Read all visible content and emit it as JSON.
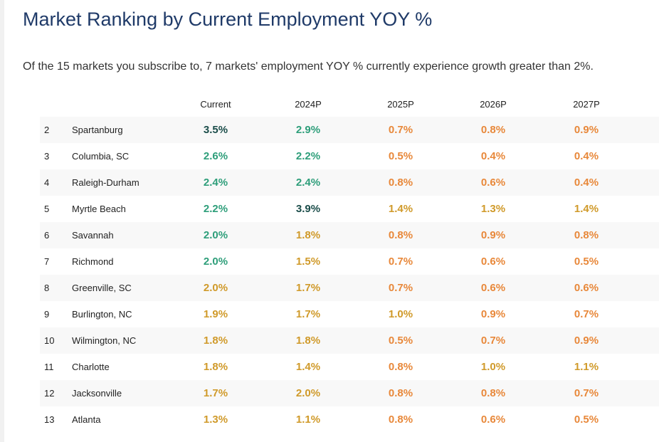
{
  "title": "Market Ranking by Current Employment YOY %",
  "summary": "Of the 15 markets you subscribe to, 7 markets' employment YOY % currently experience growth greater than 2%.",
  "columns": [
    "Current",
    "2024P",
    "2025P",
    "2026P",
    "2027P"
  ],
  "colors": {
    "dark": "#1b4d4a",
    "green": "#2e9e7a",
    "yellow": "#d09a2a",
    "orange": "#e8883a"
  },
  "rows": [
    {
      "rank": "2",
      "market": "Spartanburg",
      "values": [
        "3.5%",
        "2.9%",
        "0.7%",
        "0.8%",
        "0.9%"
      ],
      "colors": [
        "dark",
        "green",
        "orange",
        "orange",
        "orange"
      ]
    },
    {
      "rank": "3",
      "market": "Columbia, SC",
      "values": [
        "2.6%",
        "2.2%",
        "0.5%",
        "0.4%",
        "0.4%"
      ],
      "colors": [
        "green",
        "green",
        "orange",
        "orange",
        "orange"
      ]
    },
    {
      "rank": "4",
      "market": "Raleigh-Durham",
      "values": [
        "2.4%",
        "2.4%",
        "0.8%",
        "0.6%",
        "0.4%"
      ],
      "colors": [
        "green",
        "green",
        "orange",
        "orange",
        "orange"
      ]
    },
    {
      "rank": "5",
      "market": "Myrtle Beach",
      "values": [
        "2.2%",
        "3.9%",
        "1.4%",
        "1.3%",
        "1.4%"
      ],
      "colors": [
        "green",
        "dark",
        "yellow",
        "yellow",
        "yellow"
      ]
    },
    {
      "rank": "6",
      "market": "Savannah",
      "values": [
        "2.0%",
        "1.8%",
        "0.8%",
        "0.9%",
        "0.8%"
      ],
      "colors": [
        "green",
        "yellow",
        "orange",
        "orange",
        "orange"
      ]
    },
    {
      "rank": "7",
      "market": "Richmond",
      "values": [
        "2.0%",
        "1.5%",
        "0.7%",
        "0.6%",
        "0.5%"
      ],
      "colors": [
        "green",
        "yellow",
        "orange",
        "orange",
        "orange"
      ]
    },
    {
      "rank": "8",
      "market": "Greenville, SC",
      "values": [
        "2.0%",
        "1.7%",
        "0.7%",
        "0.6%",
        "0.6%"
      ],
      "colors": [
        "yellow",
        "yellow",
        "orange",
        "orange",
        "orange"
      ]
    },
    {
      "rank": "9",
      "market": "Burlington, NC",
      "values": [
        "1.9%",
        "1.7%",
        "1.0%",
        "0.9%",
        "0.7%"
      ],
      "colors": [
        "yellow",
        "yellow",
        "yellow",
        "orange",
        "orange"
      ]
    },
    {
      "rank": "10",
      "market": "Wilmington, NC",
      "values": [
        "1.8%",
        "1.8%",
        "0.5%",
        "0.7%",
        "0.9%"
      ],
      "colors": [
        "yellow",
        "yellow",
        "orange",
        "orange",
        "orange"
      ]
    },
    {
      "rank": "11",
      "market": "Charlotte",
      "values": [
        "1.8%",
        "1.4%",
        "0.8%",
        "1.0%",
        "1.1%"
      ],
      "colors": [
        "yellow",
        "yellow",
        "orange",
        "yellow",
        "yellow"
      ]
    },
    {
      "rank": "12",
      "market": "Jacksonville",
      "values": [
        "1.7%",
        "2.0%",
        "0.8%",
        "0.8%",
        "0.7%"
      ],
      "colors": [
        "yellow",
        "yellow",
        "orange",
        "orange",
        "orange"
      ]
    },
    {
      "rank": "13",
      "market": "Atlanta",
      "values": [
        "1.3%",
        "1.1%",
        "0.8%",
        "0.6%",
        "0.5%"
      ],
      "colors": [
        "yellow",
        "yellow",
        "orange",
        "orange",
        "orange"
      ]
    }
  ]
}
